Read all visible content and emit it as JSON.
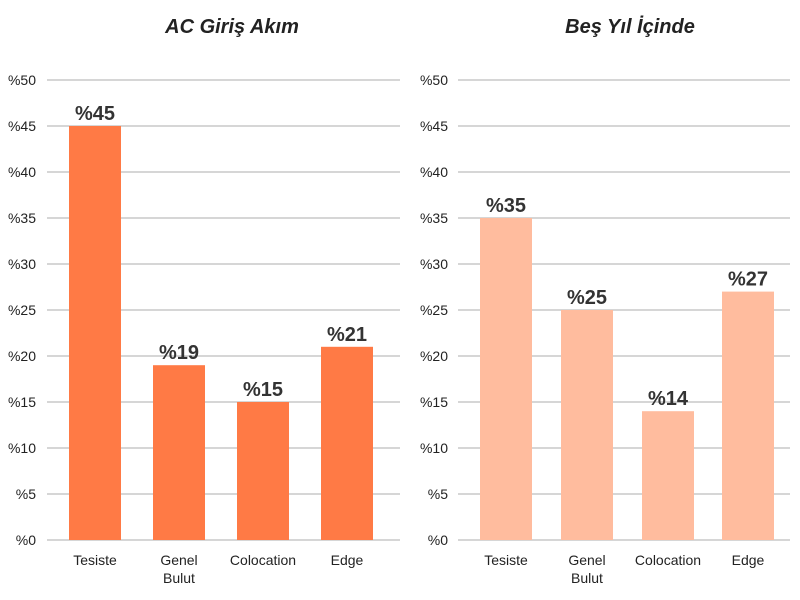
{
  "chart_data": [
    {
      "type": "bar",
      "title": "AC Giriş Akım",
      "categories": [
        [
          "Tesiste"
        ],
        [
          "Genel",
          "Bulut"
        ],
        [
          "Colocation"
        ],
        [
          "Edge"
        ]
      ],
      "values": [
        45,
        19,
        15,
        21
      ],
      "value_labels": [
        "%45",
        "%19",
        "%15",
        "%21"
      ],
      "ylim": [
        0,
        50
      ],
      "y_ticks": [
        0,
        5,
        10,
        15,
        20,
        25,
        30,
        35,
        40,
        45,
        50
      ],
      "y_tick_labels": [
        "%0",
        "%5",
        "%10",
        "%15",
        "%20",
        "%25",
        "%30",
        "%35",
        "%40",
        "%45",
        "%50"
      ],
      "grid": true,
      "color": "#ff7a45"
    },
    {
      "type": "bar",
      "title": "Beş Yıl İçinde",
      "categories": [
        [
          "Tesiste"
        ],
        [
          "Genel",
          "Bulut"
        ],
        [
          "Colocation"
        ],
        [
          "Edge"
        ]
      ],
      "values": [
        35,
        25,
        14,
        27
      ],
      "value_labels": [
        "%35",
        "%25",
        "%14",
        "%27"
      ],
      "ylim": [
        0,
        50
      ],
      "y_ticks": [
        0,
        5,
        10,
        15,
        20,
        25,
        30,
        35,
        40,
        45,
        50
      ],
      "y_tick_labels": [
        "%0",
        "%5",
        "%10",
        "%15",
        "%20",
        "%25",
        "%30",
        "%35",
        "%40",
        "%45",
        "%50"
      ],
      "grid": true,
      "color": "#ffbc9e"
    }
  ]
}
